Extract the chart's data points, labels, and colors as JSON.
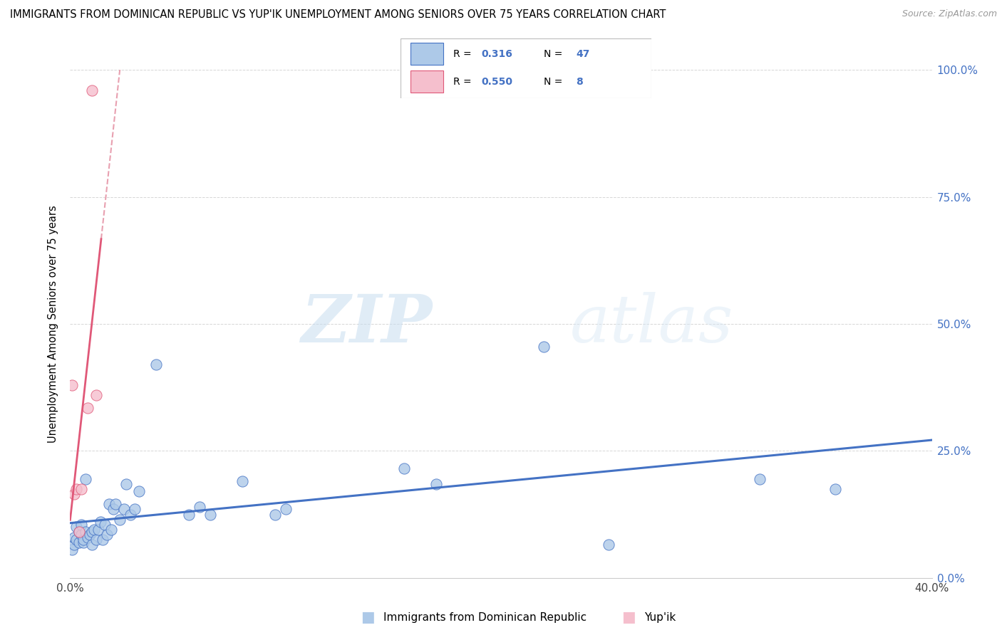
{
  "title": "IMMIGRANTS FROM DOMINICAN REPUBLIC VS YUP'IK UNEMPLOYMENT AMONG SENIORS OVER 75 YEARS CORRELATION CHART",
  "source": "Source: ZipAtlas.com",
  "ylabel": "Unemployment Among Seniors over 75 years",
  "xlim": [
    0,
    0.4
  ],
  "ylim": [
    0,
    1.0
  ],
  "blue_R": 0.316,
  "blue_N": 47,
  "pink_R": 0.55,
  "pink_N": 8,
  "blue_color": "#adc9e8",
  "pink_color": "#f5bfcd",
  "blue_line_color": "#4472c4",
  "pink_line_color": "#e05878",
  "pink_line_dashed_color": "#e8a0b0",
  "watermark_zip": "ZIP",
  "watermark_atlas": "atlas",
  "blue_scatter_x": [
    0.001,
    0.002,
    0.002,
    0.003,
    0.003,
    0.004,
    0.004,
    0.005,
    0.005,
    0.006,
    0.006,
    0.007,
    0.007,
    0.008,
    0.009,
    0.01,
    0.01,
    0.011,
    0.012,
    0.013,
    0.014,
    0.015,
    0.016,
    0.017,
    0.018,
    0.019,
    0.02,
    0.021,
    0.023,
    0.025,
    0.026,
    0.028,
    0.03,
    0.032,
    0.04,
    0.055,
    0.06,
    0.065,
    0.08,
    0.095,
    0.1,
    0.155,
    0.17,
    0.22,
    0.25,
    0.32,
    0.355
  ],
  "blue_scatter_y": [
    0.055,
    0.065,
    0.08,
    0.075,
    0.1,
    0.07,
    0.09,
    0.085,
    0.105,
    0.07,
    0.075,
    0.09,
    0.195,
    0.08,
    0.085,
    0.065,
    0.09,
    0.095,
    0.075,
    0.095,
    0.11,
    0.075,
    0.105,
    0.085,
    0.145,
    0.095,
    0.135,
    0.145,
    0.115,
    0.135,
    0.185,
    0.125,
    0.135,
    0.17,
    0.42,
    0.125,
    0.14,
    0.125,
    0.19,
    0.125,
    0.135,
    0.215,
    0.185,
    0.455,
    0.065,
    0.195,
    0.175
  ],
  "pink_scatter_x": [
    0.001,
    0.002,
    0.003,
    0.004,
    0.005,
    0.008,
    0.01,
    0.012
  ],
  "pink_scatter_y": [
    0.38,
    0.165,
    0.175,
    0.09,
    0.175,
    0.335,
    0.96,
    0.36
  ],
  "pink_scatter_size": [
    80,
    80,
    80,
    80,
    80,
    80,
    80,
    80
  ],
  "legend_label_blue": "Immigrants from Dominican Republic",
  "legend_label_pink": "Yup'ik"
}
